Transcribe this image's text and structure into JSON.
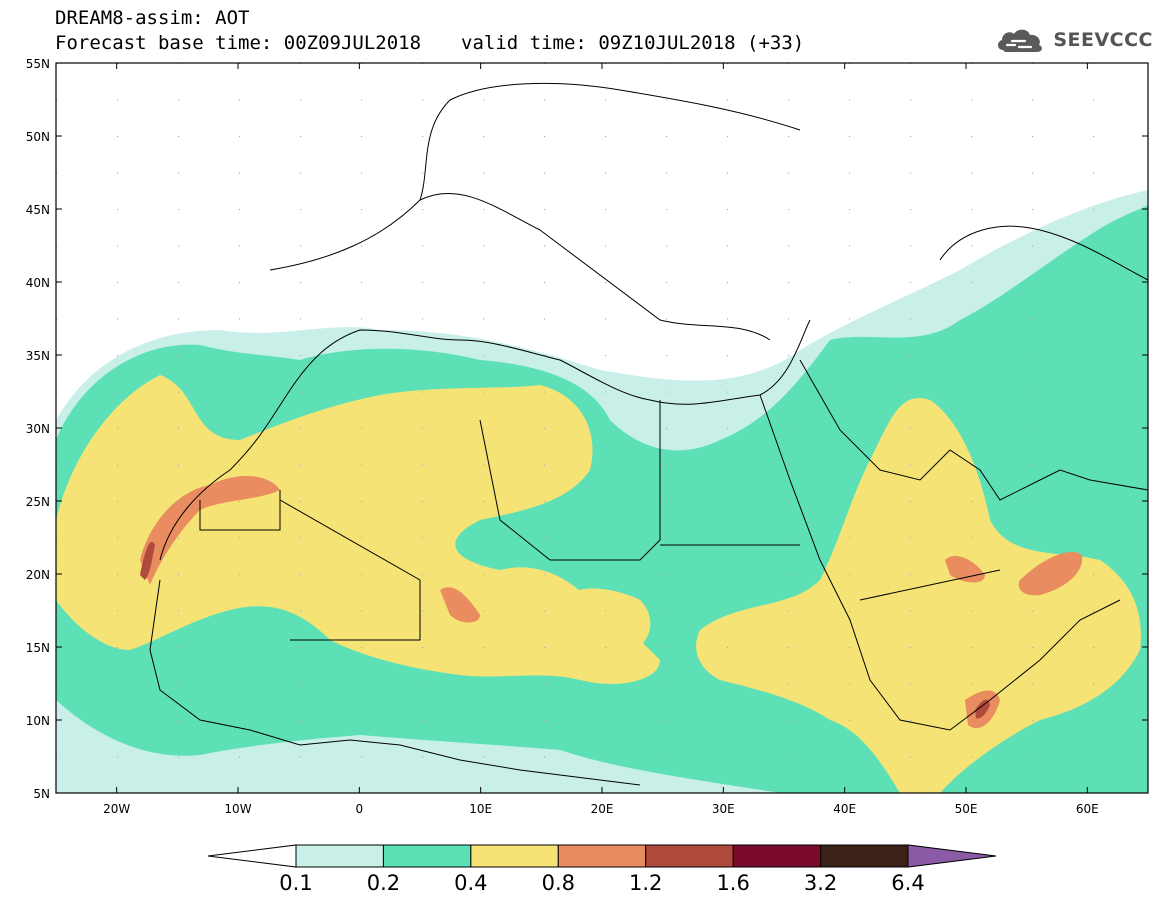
{
  "header": {
    "title": "DREAM8-assim: AOT",
    "base_time": "Forecast base time: 00Z09JUL2018",
    "valid_time": "valid time: 09Z10JUL2018 (+33)"
  },
  "logo": {
    "text": "SEEVCCC",
    "icon": "cloud-icon"
  },
  "map": {
    "lat_ticks": [
      "55N",
      "50N",
      "45N",
      "40N",
      "35N",
      "30N",
      "25N",
      "20N",
      "15N",
      "10N",
      "5N"
    ],
    "lon_ticks": [
      "20W",
      "10W",
      "0",
      "10E",
      "20E",
      "30E",
      "40E",
      "50E",
      "60E"
    ],
    "lat_range": [
      5,
      55
    ],
    "lon_range": [
      -25,
      65
    ]
  },
  "colorbar": {
    "labels": [
      "0.1",
      "0.2",
      "0.4",
      "0.8",
      "1.2",
      "1.6",
      "3.2",
      "6.4"
    ],
    "colors": [
      "#ffffff",
      "#c8f0e8",
      "#5ee0b6",
      "#f5e475",
      "#e98c5f",
      "#b04a3c",
      "#7a0a2a",
      "#3a2316",
      "#8a5ca8"
    ]
  }
}
